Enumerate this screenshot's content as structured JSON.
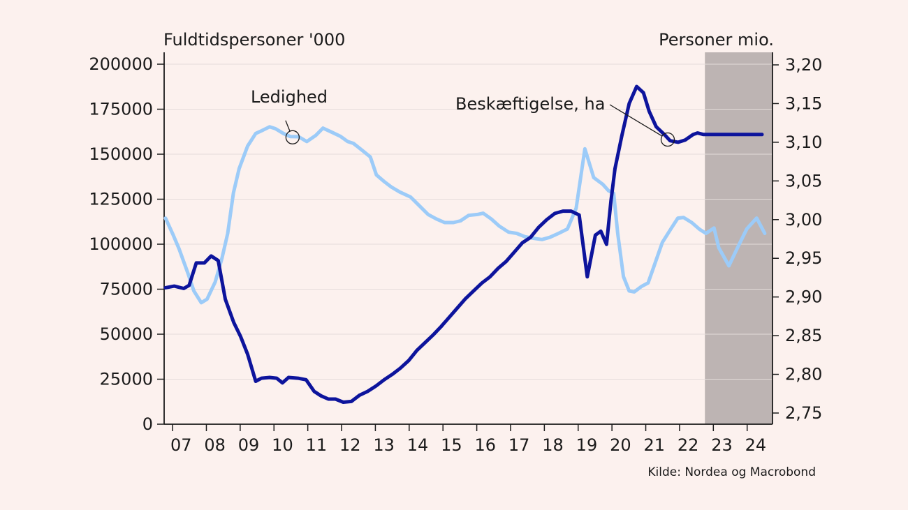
{
  "chart_data": {
    "type": "line",
    "left_axis_title": "Fuldtidspersoner '000",
    "right_axis_title": "Personer mio.",
    "source": "Kilde: Nordea og Macrobond",
    "x_tick_labels": [
      "07",
      "08",
      "09",
      "10",
      "11",
      "12",
      "13",
      "14",
      "15",
      "16",
      "17",
      "18",
      "19",
      "20",
      "21",
      "22",
      "23",
      "24"
    ],
    "x_range": [
      2006.75,
      2024.75
    ],
    "left_ylim": [
      0,
      200000
    ],
    "left_yticks": [
      0,
      25000,
      50000,
      75000,
      100000,
      125000,
      150000,
      175000,
      200000
    ],
    "left_ytick_labels": [
      "0",
      "25000",
      "50000",
      "75000",
      "100000",
      "125000",
      "150000",
      "175000",
      "200000"
    ],
    "right_ylim": [
      2.74,
      3.205
    ],
    "right_yticks": [
      2.75,
      2.8,
      2.85,
      2.9,
      2.95,
      3.0,
      3.05,
      3.1,
      3.15,
      3.2
    ],
    "right_ytick_labels": [
      "2,75",
      "2,80",
      "2,85",
      "2,90",
      "2,95",
      "3,00",
      "3,05",
      "3,10",
      "3,15",
      "3,20"
    ],
    "forecast_shading": {
      "from": 2022.75,
      "to": 2024.75,
      "color": "#bdb4b3"
    },
    "grid": "horizontal",
    "series": [
      {
        "name": "Ledighed",
        "axis": "left",
        "color": "#9ccbf8",
        "x": [
          2006.79,
          2007.02,
          2007.19,
          2007.46,
          2007.63,
          2007.85,
          2008.02,
          2008.26,
          2008.46,
          2008.63,
          2008.8,
          2008.97,
          2009.22,
          2009.46,
          2009.63,
          2009.87,
          2010.04,
          2010.28,
          2010.48,
          2010.73,
          2010.97,
          2011.24,
          2011.45,
          2011.68,
          2011.96,
          2012.18,
          2012.35,
          2012.62,
          2012.85,
          2013.03,
          2013.26,
          2013.47,
          2013.72,
          2014.04,
          2014.32,
          2014.56,
          2014.81,
          2015.05,
          2015.31,
          2015.52,
          2015.76,
          2016.02,
          2016.19,
          2016.43,
          2016.67,
          2016.94,
          2017.18,
          2017.42,
          2017.69,
          2017.93,
          2018.16,
          2018.42,
          2018.68,
          2018.94,
          2019.2,
          2019.46,
          2019.73,
          2019.9,
          2020.05,
          2020.17,
          2020.34,
          2020.51,
          2020.66,
          2020.88,
          2021.07,
          2021.24,
          2021.49,
          2021.76,
          2021.95,
          2022.12,
          2022.36,
          2022.59,
          2022.78,
          2023.02,
          2023.16,
          2023.46,
          2023.74,
          2023.99,
          2024.28,
          2024.52
        ],
        "y": [
          114500,
          105000,
          97500,
          83500,
          74000,
          67500,
          69500,
          79000,
          92000,
          106000,
          128500,
          142000,
          154500,
          161500,
          163000,
          165200,
          164200,
          161500,
          159800,
          159700,
          157000,
          160500,
          164500,
          162500,
          160000,
          157000,
          156000,
          152000,
          148500,
          138500,
          134800,
          131800,
          129000,
          126200,
          121000,
          116500,
          114000,
          112000,
          112000,
          113000,
          116000,
          116500,
          117200,
          114000,
          110000,
          106700,
          106000,
          104200,
          103200,
          102600,
          103800,
          106000,
          108400,
          120000,
          153000,
          137000,
          133200,
          129700,
          128300,
          106000,
          82000,
          74000,
          73500,
          76600,
          78500,
          87600,
          101000,
          109000,
          114500,
          114800,
          112000,
          108300,
          106000,
          109000,
          98000,
          88000,
          99000,
          108500,
          114500,
          106000
        ]
      },
      {
        "name": "Beskæftigelse, ha",
        "axis": "right",
        "color": "#0d149c",
        "x": [
          2006.79,
          2007.05,
          2007.33,
          2007.49,
          2007.7,
          2007.94,
          2008.14,
          2008.35,
          2008.56,
          2008.81,
          2009.01,
          2009.22,
          2009.46,
          2009.63,
          2009.87,
          2010.08,
          2010.25,
          2010.43,
          2010.71,
          2010.95,
          2011.19,
          2011.4,
          2011.61,
          2011.82,
          2012.05,
          2012.29,
          2012.53,
          2012.77,
          2013.02,
          2013.26,
          2013.5,
          2013.74,
          2013.99,
          2014.23,
          2014.47,
          2014.71,
          2014.95,
          2015.19,
          2015.43,
          2015.67,
          2015.91,
          2016.15,
          2016.39,
          2016.63,
          2016.87,
          2017.11,
          2017.35,
          2017.59,
          2017.83,
          2018.07,
          2018.31,
          2018.55,
          2018.79,
          2019.03,
          2019.27,
          2019.51,
          2019.67,
          2019.84,
          2019.97,
          2020.09,
          2020.29,
          2020.51,
          2020.73,
          2020.93,
          2021.1,
          2021.31,
          2021.55,
          2021.72,
          2021.96,
          2022.17,
          2022.4,
          2022.53,
          2022.71,
          2022.9,
          2023.04,
          2023.22,
          2023.44,
          2023.67,
          2023.93,
          2024.18,
          2024.44
        ],
        "y": [
          2.912,
          2.914,
          2.911,
          2.915,
          2.944,
          2.944,
          2.953,
          2.947,
          2.897,
          2.867,
          2.849,
          2.826,
          2.791,
          2.795,
          2.796,
          2.795,
          2.789,
          2.796,
          2.795,
          2.793,
          2.778,
          2.772,
          2.768,
          2.768,
          2.764,
          2.765,
          2.773,
          2.778,
          2.785,
          2.793,
          2.8,
          2.808,
          2.818,
          2.831,
          2.841,
          2.851,
          2.862,
          2.874,
          2.886,
          2.898,
          2.908,
          2.918,
          2.926,
          2.937,
          2.946,
          2.958,
          2.97,
          2.977,
          2.99,
          3.0,
          3.008,
          3.011,
          3.011,
          3.006,
          2.926,
          2.98,
          2.985,
          2.968,
          3.024,
          3.066,
          3.108,
          3.15,
          3.172,
          3.164,
          3.14,
          3.12,
          3.11,
          3.102,
          3.1,
          3.103,
          3.11,
          3.112,
          3.11,
          3.11,
          3.11,
          3.11,
          3.11,
          3.11,
          3.11,
          3.11,
          3.11
        ]
      }
    ],
    "annotations": [
      {
        "label": "Ledighed",
        "series": 0,
        "x": 2010.55
      },
      {
        "label": "Beskæftigelse, ha",
        "series": 1,
        "x": 2021.65
      }
    ]
  }
}
